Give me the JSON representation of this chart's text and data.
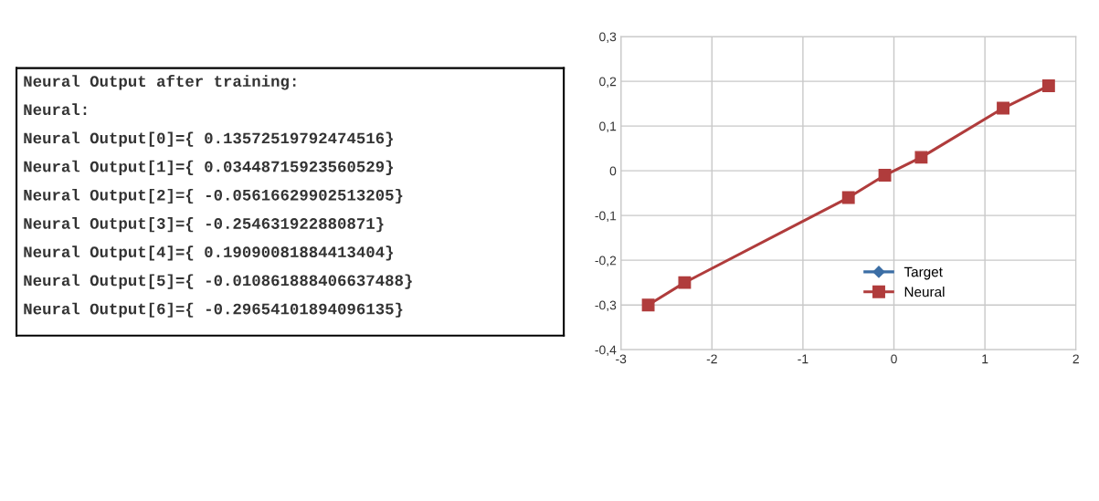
{
  "chart_data": [
    {
      "type": "other",
      "annotations": [
        "Neural Output after training:",
        "Neural:",
        "Neural Output[0]={ 0.13572519792474516}",
        "Neural Output[1]={ 0.03448715923560529}",
        "Neural Output[2]={ -0.05616629902513205}",
        "Neural Output[3]={ -0.254631922880871}",
        "Neural Output[4]={ 0.19090081884413404}",
        "Neural Output[5]={ -0.010861888406637488}",
        "Neural Output[6]={ -0.29654101894096135}"
      ]
    },
    {
      "type": "line",
      "x": [
        -2.7,
        -2.3,
        -0.5,
        -0.1,
        0.3,
        1.2,
        1.7
      ],
      "series": [
        {
          "name": "Target",
          "color": "#3b6ea5",
          "marker": "diamond",
          "values": [
            null,
            null,
            null,
            null,
            null,
            null,
            null
          ]
        },
        {
          "name": "Neural",
          "color": "#b03c3c",
          "marker": "square",
          "values": [
            -0.3,
            -0.25,
            -0.06,
            -0.01,
            0.03,
            0.14,
            0.19
          ]
        }
      ],
      "xlim": [
        -3,
        2
      ],
      "xticks": [
        -3,
        -2,
        -1,
        0,
        1,
        2
      ],
      "ylim": [
        -0.4,
        0.3
      ],
      "yticks": [
        {
          "value": -0.4,
          "label": "-0,4"
        },
        {
          "value": -0.3,
          "label": "-0,3"
        },
        {
          "value": -0.2,
          "label": "-0,2"
        },
        {
          "value": -0.1,
          "label": "-0,1"
        },
        0,
        {
          "value": 0.1,
          "label": "0,1"
        },
        {
          "value": 0.2,
          "label": "0,2"
        },
        {
          "value": 0.3,
          "label": "0,3"
        }
      ],
      "grid": true,
      "legend": "bottom right",
      "line_style": "solid"
    }
  ]
}
